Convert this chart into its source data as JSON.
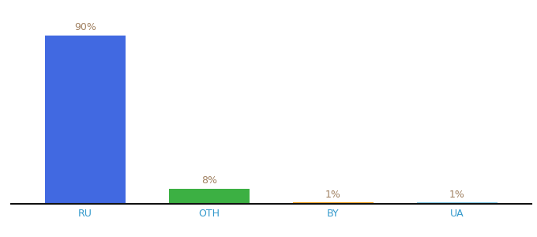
{
  "categories": [
    "RU",
    "OTH",
    "BY",
    "UA"
  ],
  "values": [
    90,
    8,
    1,
    1
  ],
  "bar_colors": [
    "#4169e1",
    "#3cb043",
    "#f5a623",
    "#87ceeb"
  ],
  "labels": [
    "90%",
    "8%",
    "1%",
    "1%"
  ],
  "label_color": "#a08060",
  "ylim": [
    0,
    100
  ],
  "background_color": "#ffffff",
  "bar_width": 0.65,
  "tick_fontsize": 9,
  "label_fontsize": 9
}
